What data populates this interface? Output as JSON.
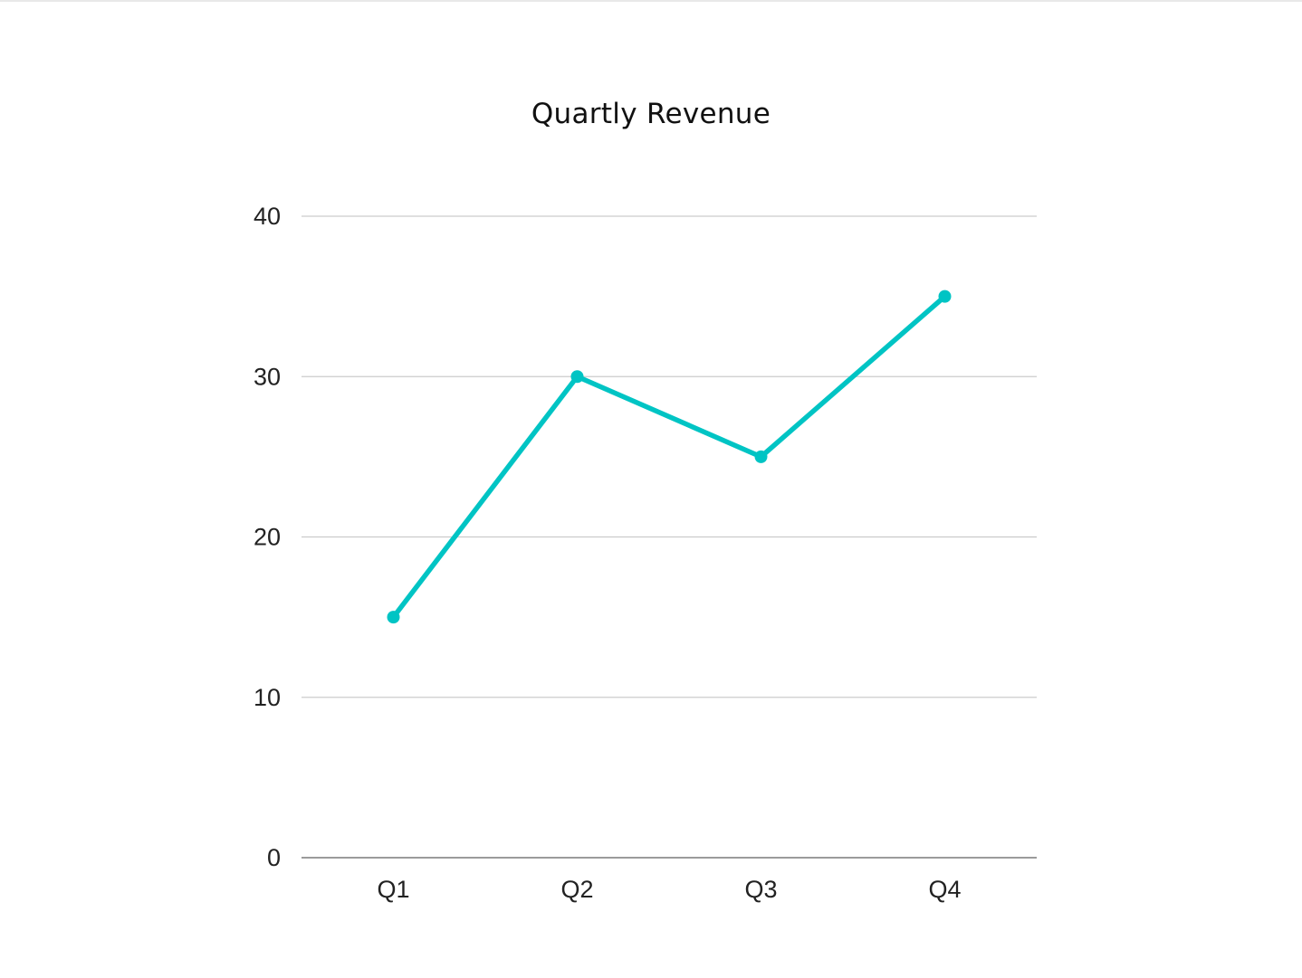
{
  "chart_data": {
    "type": "line",
    "title": "Quartly Revenue",
    "categories": [
      "Q1",
      "Q2",
      "Q3",
      "Q4"
    ],
    "series": [
      {
        "values": [
          15,
          30,
          25,
          35
        ],
        "color": "#00c4c4"
      }
    ],
    "ylim": [
      0,
      40
    ],
    "yticks": [
      0,
      10,
      20,
      30,
      40
    ],
    "grid": true,
    "legend": "none",
    "xlabel": "",
    "ylabel": ""
  }
}
